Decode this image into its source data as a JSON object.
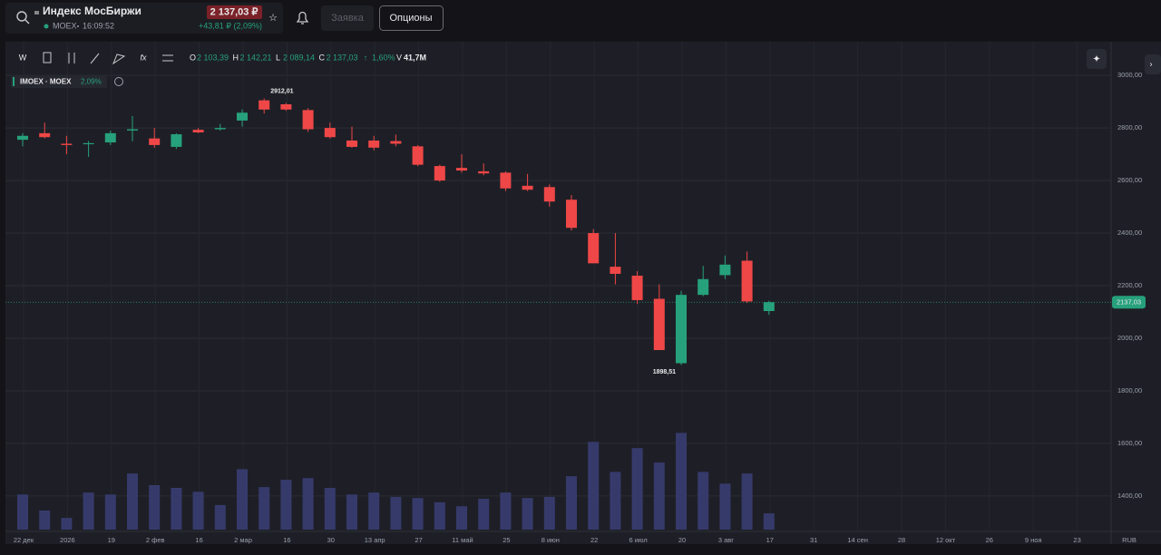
{
  "header": {
    "title": "Индекс МосБиржи",
    "price": "2 137,03 ₽",
    "ticker": "MOEX",
    "time": "16:09:52",
    "change": "+43,81 ₽ (2,09%)",
    "buttons": [
      "Заявка",
      "Опционы"
    ]
  },
  "toolbar": {
    "interval": "W",
    "formula": "fx"
  },
  "ohlc": [
    {
      "label": "O",
      "value": "2 103,39"
    },
    {
      "label": "H",
      "value": "2 142,21"
    },
    {
      "label": "L",
      "value": "2 089,14"
    },
    {
      "label": "C",
      "value": "2 137,03"
    }
  ],
  "change_pct": "1,60%",
  "volume_info": {
    "label": "V",
    "value": "41,7M"
  },
  "legend": {
    "name": "IMOEX · MOEX",
    "change": "2,09%"
  },
  "chart_data": {
    "type": "candlestick",
    "x_labels": [
      "22 дек",
      "2026",
      "19",
      "2 фев",
      "16",
      "2 мар",
      "16",
      "30",
      "13 апр",
      "27",
      "11 май",
      "25",
      "8 июн",
      "22",
      "6 июл",
      "20",
      "3 авг",
      "17",
      "31",
      "14 сен",
      "28",
      "12 окт",
      "26",
      "9 ноя",
      "23"
    ],
    "currency": "RUB",
    "open": [
      2755,
      2780,
      2740,
      2738,
      2745,
      2790,
      2760,
      2728,
      2793,
      2795,
      2828,
      2905,
      2890,
      2868,
      2800,
      2752,
      2752,
      2750,
      2730,
      2655,
      2648,
      2635,
      2630,
      2580,
      2575,
      2527,
      2400,
      2272,
      2238,
      2150,
      1905,
      2165,
      2240,
      2295,
      2103.39
    ],
    "high": [
      2780,
      2820,
      2770,
      2750,
      2790,
      2845,
      2800,
      2780,
      2800,
      2815,
      2870,
      2912.01,
      2895,
      2875,
      2820,
      2805,
      2770,
      2775,
      2735,
      2660,
      2700,
      2665,
      2635,
      2625,
      2585,
      2545,
      2415,
      2400,
      2255,
      2205,
      2180,
      2275,
      2315,
      2330,
      2142.21
    ],
    "low": [
      2730,
      2760,
      2700,
      2690,
      2735,
      2750,
      2725,
      2720,
      2780,
      2790,
      2805,
      2855,
      2865,
      2785,
      2760,
      2725,
      2715,
      2730,
      2655,
      2595,
      2630,
      2620,
      2560,
      2560,
      2500,
      2410,
      2290,
      2205,
      2130,
      1955,
      1898.51,
      2160,
      2225,
      2135,
      2089.14
    ],
    "close": [
      2770,
      2765,
      2735,
      2742,
      2780,
      2795,
      2735,
      2776,
      2783,
      2800,
      2858,
      2870,
      2870,
      2795,
      2765,
      2728,
      2725,
      2740,
      2660,
      2600,
      2638,
      2627,
      2570,
      2565,
      2520,
      2420,
      2285,
      2245,
      2145,
      1955,
      2165,
      2225,
      2280,
      2140,
      2137.03
    ],
    "volume": [
      90,
      49,
      30,
      95,
      90,
      144,
      114,
      107,
      97,
      63,
      155,
      109,
      128,
      132,
      107,
      90,
      95,
      84,
      81,
      70,
      60,
      79,
      95,
      81,
      84,
      137,
      225,
      148,
      209,
      172,
      248,
      148,
      118,
      144,
      41.7
    ],
    "ylim": [
      1272,
      3128
    ],
    "yticks": [
      {
        "value": 3000,
        "label": "3000,00"
      },
      {
        "value": 2800,
        "label": "2800,00"
      },
      {
        "value": 2600,
        "label": "2600,00"
      },
      {
        "value": 2400,
        "label": "2400,00"
      },
      {
        "value": 2200,
        "label": "2200,00"
      },
      {
        "value": 2000,
        "label": "2000,00"
      },
      {
        "value": 1800,
        "label": "1800,00"
      },
      {
        "value": 1600,
        "label": "1600,00"
      },
      {
        "value": 1400,
        "label": "1400,00"
      }
    ],
    "volume_lim": [
      0,
      300
    ],
    "last_price": {
      "value": 2137.03,
      "label": "2137,03"
    },
    "annotations": [
      {
        "value": 2912.01,
        "label": "2912,01"
      },
      {
        "value": 1898.51,
        "label": "1898,51"
      }
    ],
    "colors": {
      "up": "#26a17b",
      "down": "#ef4747",
      "volume": "#363a6b"
    }
  }
}
